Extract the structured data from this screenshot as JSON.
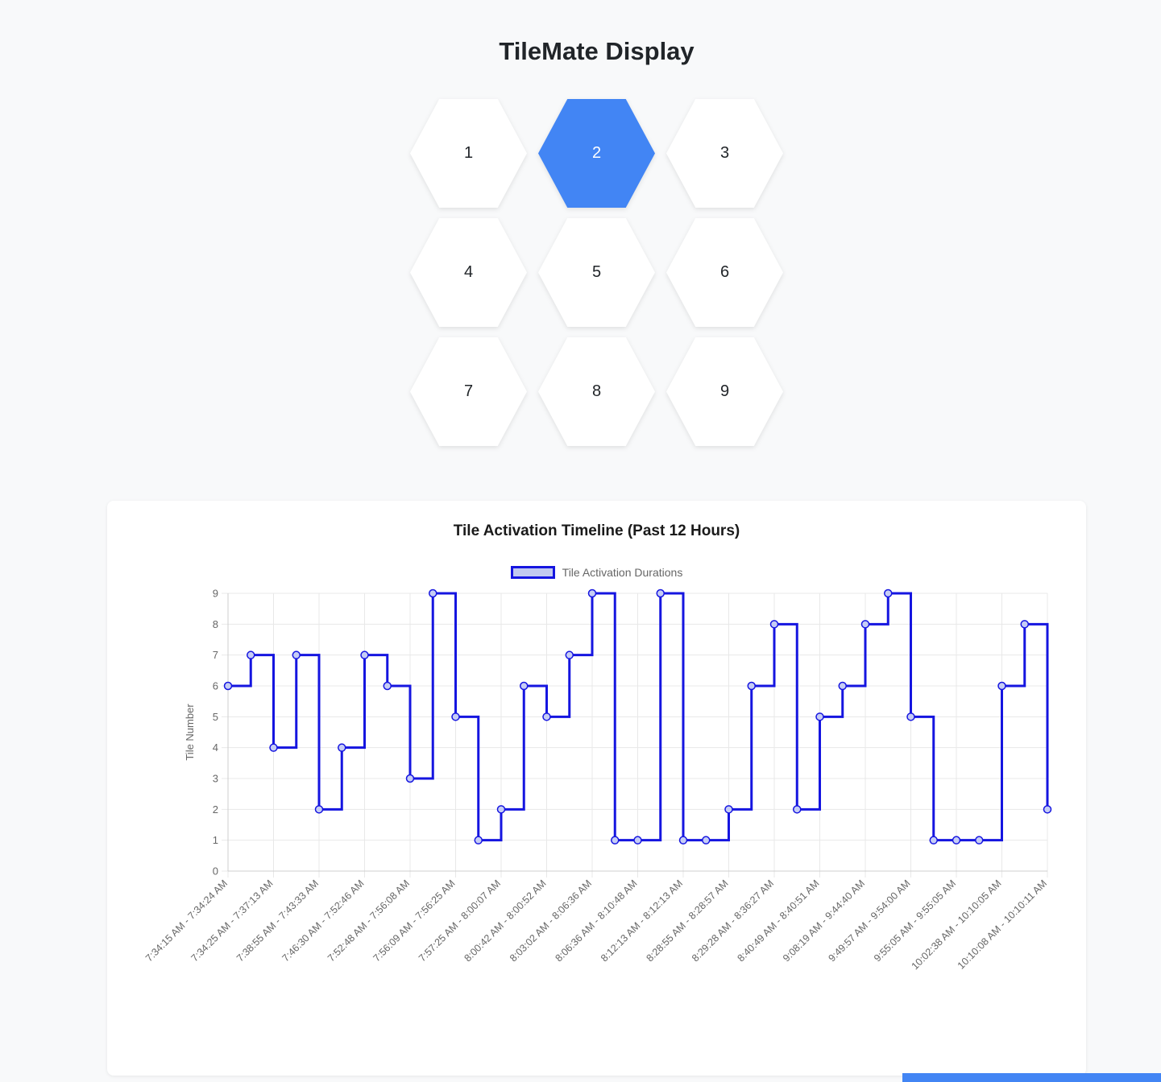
{
  "page": {
    "title": "TileMate Display",
    "background_color": "#f8f9fa"
  },
  "hex_grid": {
    "active_color": "#4285f4",
    "inactive_color": "#ffffff",
    "tiles": [
      {
        "label": "1",
        "active": false
      },
      {
        "label": "2",
        "active": true
      },
      {
        "label": "3",
        "active": false
      },
      {
        "label": "4",
        "active": false
      },
      {
        "label": "5",
        "active": false
      },
      {
        "label": "6",
        "active": false
      },
      {
        "label": "7",
        "active": false
      },
      {
        "label": "8",
        "active": false
      },
      {
        "label": "9",
        "active": false
      }
    ]
  },
  "chart_data": {
    "type": "line",
    "stepped": true,
    "title": "Tile Activation Timeline (Past 12 Hours)",
    "legend_label": "Tile Activation Durations",
    "legend_position": "top",
    "ylabel": "Tile Number",
    "xlabel": "",
    "ylim": [
      0,
      9
    ],
    "yticks": [
      0,
      1,
      2,
      3,
      4,
      5,
      6,
      7,
      8,
      9
    ],
    "grid": true,
    "line_color": "#1515e0",
    "point_fill_color": "#c6cdf5",
    "legend_fill_color": "#c2c9f0",
    "axis_text_color": "#666666",
    "grid_color": "#e8e8e8",
    "axis_border_color": "#cfcfcf",
    "values": [
      6,
      7,
      4,
      7,
      2,
      4,
      7,
      6,
      3,
      9,
      5,
      1,
      2,
      6,
      5,
      7,
      9,
      1,
      1,
      9,
      1,
      1,
      2,
      6,
      8,
      2,
      5,
      6,
      8,
      9,
      5,
      1,
      1,
      1,
      6,
      8,
      2
    ],
    "x_label_every": 2,
    "x_tick_labels": [
      "7:34:15 AM - 7:34:24 AM",
      "7:34:25 AM - 7:37:13 AM",
      "7:38:55 AM - 7:43:33 AM",
      "7:46:30 AM - 7:52:46 AM",
      "7:52:48 AM - 7:56:08 AM",
      "7:56:09 AM - 7:56:25 AM",
      "7:57:25 AM - 8:00:07 AM",
      "8:00:42 AM - 8:00:52 AM",
      "8:03:02 AM - 8:06:36 AM",
      "8:06:36 AM - 8:10:48 AM",
      "8:12:13 AM - 8:12:13 AM",
      "8:28:55 AM - 8:28:57 AM",
      "8:29:28 AM - 8:36:27 AM",
      "8:40:49 AM - 8:40:51 AM",
      "9:08:19 AM - 9:44:40 AM",
      "9:49:57 AM - 9:54:00 AM",
      "9:55:05 AM - 9:55:05 AM",
      "10:02:38 AM - 10:10:05 AM",
      "10:10:08 AM - 10:10:11 AM"
    ]
  },
  "bottom_bar": {
    "color": "#4285f4"
  }
}
